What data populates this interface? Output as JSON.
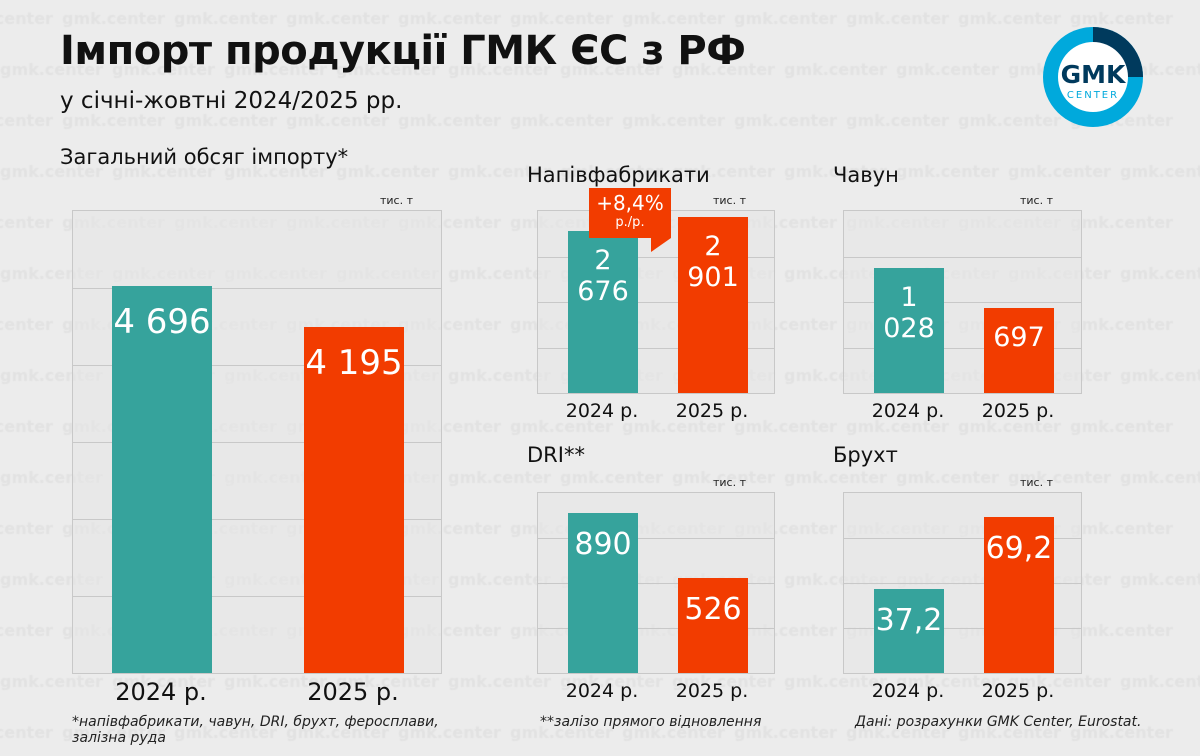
{
  "title": "Імпорт продукції ГМК ЄС з РФ",
  "subtitle": "у січні-жовтні 2024/2025 рр.",
  "logo": {
    "text": "GMK",
    "subtext": "CENTER",
    "colors": [
      "#00a9dc",
      "#003a5d"
    ]
  },
  "watermark": "gmk.center",
  "colors": {
    "y2024": "#36a39c",
    "y2025": "#f23c00"
  },
  "callout": {
    "value": "+8,4%",
    "unit": "р./р."
  },
  "chart_data": [
    {
      "type": "bar",
      "title": "Загальний обсяг імпорту*",
      "unit": "тис. т",
      "categories": [
        "2024 р.",
        "2025 р."
      ],
      "values": [
        4696,
        4195
      ],
      "labels": [
        "4 696",
        "4 195"
      ],
      "ylim": [
        0,
        5600
      ]
    },
    {
      "type": "bar",
      "title": "Напівфабрикати",
      "unit": "тис. т",
      "categories": [
        "2024 р.",
        "2025 р."
      ],
      "values": [
        2676,
        2901
      ],
      "labels": [
        "2 676",
        "2 901"
      ],
      "ylim": [
        0,
        3000
      ]
    },
    {
      "type": "bar",
      "title": "Чавун",
      "unit": "тис. т",
      "categories": [
        "2024 р.",
        "2025 р."
      ],
      "values": [
        1028,
        697
      ],
      "labels": [
        "1 028",
        "697"
      ],
      "ylim": [
        0,
        1500
      ]
    },
    {
      "type": "bar",
      "title": "DRI**",
      "unit": "тис. т",
      "categories": [
        "2024 р.",
        "2025 р."
      ],
      "values": [
        890,
        526
      ],
      "labels": [
        "890",
        "526"
      ],
      "ylim": [
        0,
        1000
      ]
    },
    {
      "type": "bar",
      "title": "Брухт",
      "unit": "тис. т",
      "categories": [
        "2024 р.",
        "2025 р."
      ],
      "values": [
        37.2,
        69.2
      ],
      "labels": [
        "37,2",
        "69,2"
      ],
      "ylim": [
        0,
        80
      ]
    }
  ],
  "notes": {
    "n1": "*напівфабрикати, чавун, DRI, брухт, феросплави, залізна руда",
    "n2": "**залізо прямого відновлення",
    "source": "Дані: розрахунки GMK Center, Eurostat."
  }
}
